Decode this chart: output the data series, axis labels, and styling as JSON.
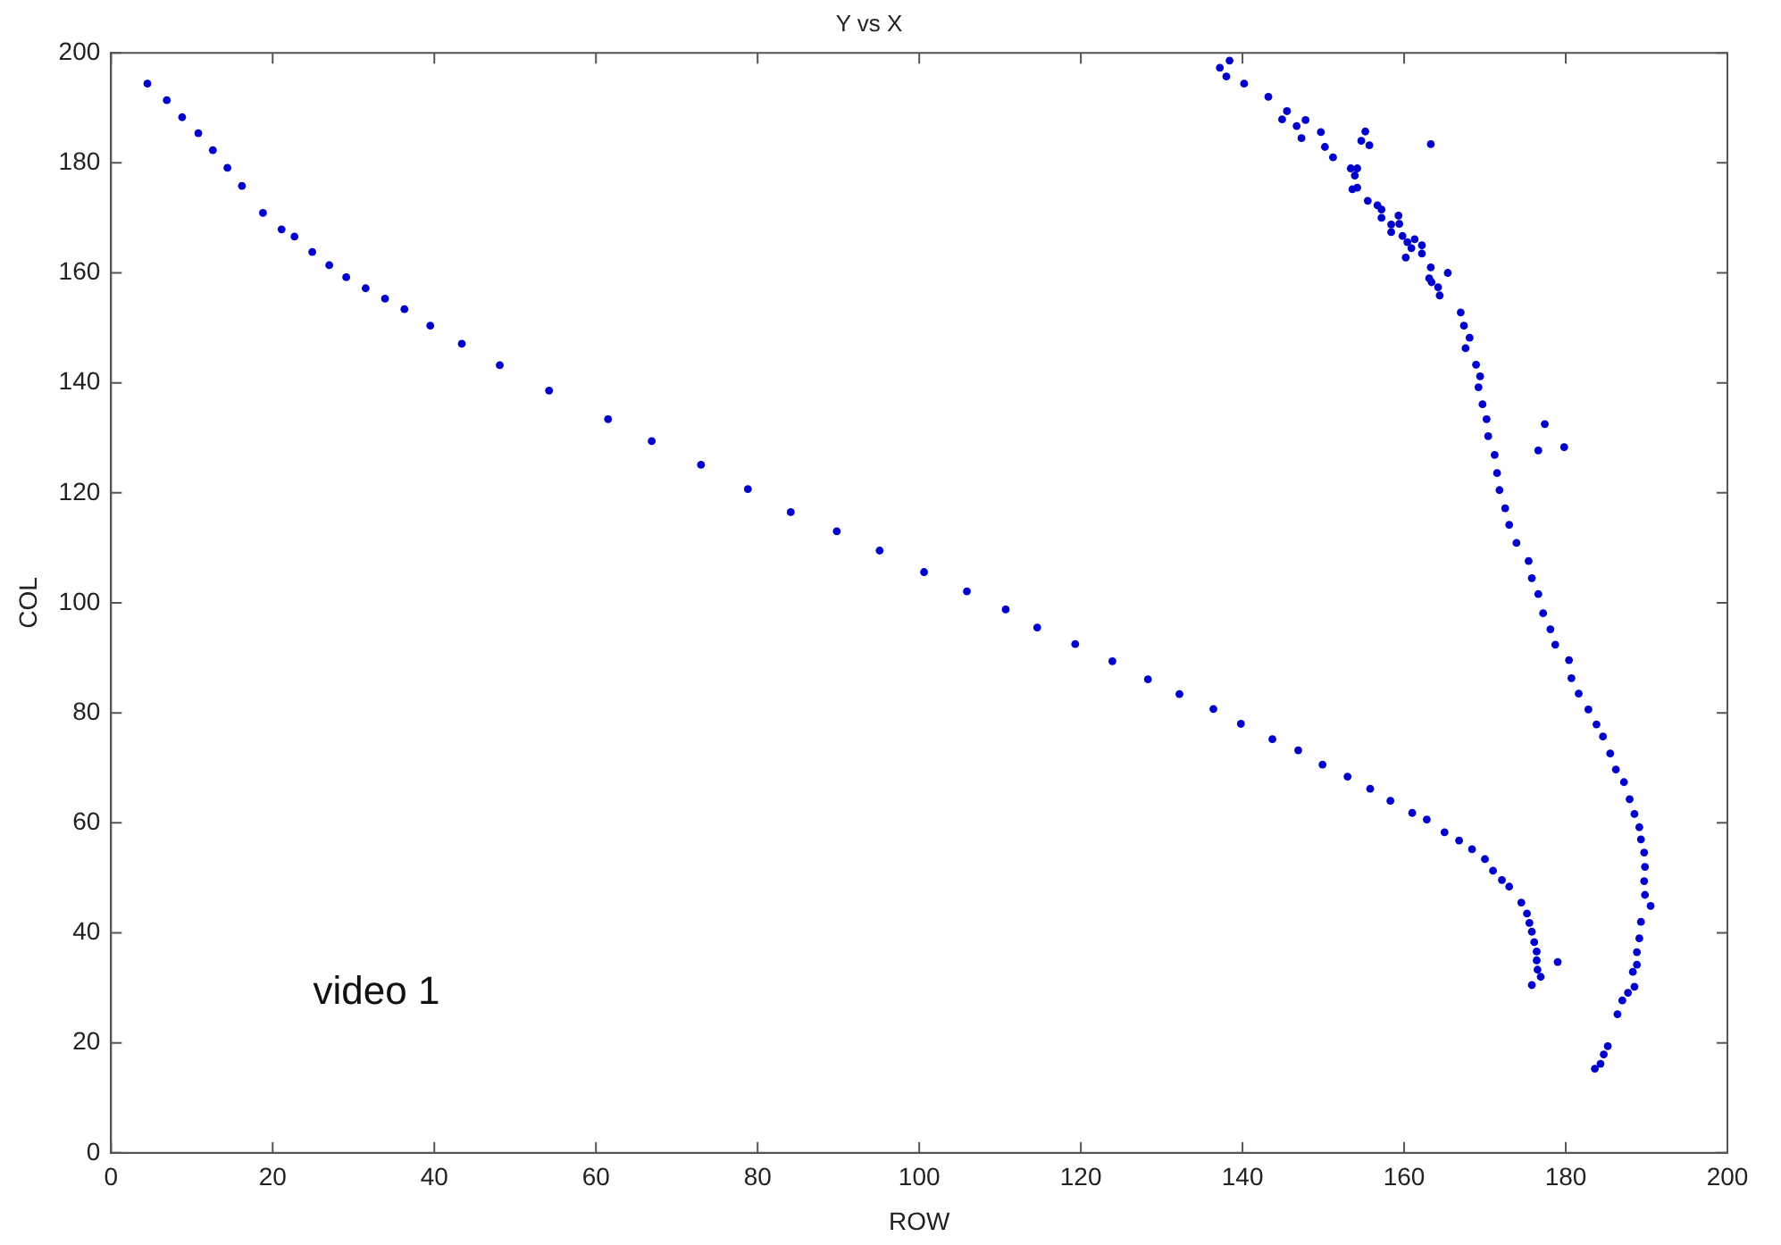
{
  "chart_data": {
    "type": "scatter",
    "title": "Y vs X",
    "xlabel": "ROW",
    "ylabel": "COL",
    "annotations": [
      "video 1"
    ],
    "xlim": [
      0,
      200
    ],
    "xticks": [
      0,
      20,
      40,
      60,
      80,
      100,
      120,
      140,
      160,
      180,
      200
    ],
    "ylim": [
      0,
      200
    ],
    "yticks": [
      0,
      20,
      40,
      60,
      80,
      100,
      120,
      140,
      160,
      180,
      200
    ],
    "grid": false,
    "legend": false,
    "marker": "circle",
    "series": [
      {
        "color": "#0000cc",
        "x": [
          4.5,
          6.9,
          8.8,
          10.8,
          12.6,
          14.4,
          16.2,
          18.8,
          21.1,
          22.7,
          24.9,
          27.0,
          29.1,
          31.5,
          33.9,
          36.3,
          39.5,
          43.4,
          48.1,
          54.2,
          61.5,
          66.9,
          73.0,
          78.8,
          84.1,
          89.8,
          95.1,
          100.6,
          105.9,
          110.7,
          114.6,
          119.3,
          123.9,
          128.3,
          132.2,
          136.4,
          139.8,
          143.7,
          146.9,
          149.9,
          153.0,
          155.8,
          158.3,
          161.0,
          162.8,
          165.0,
          166.8,
          168.4,
          170.0,
          171.0,
          172.1,
          173.0,
          174.5,
          175.2,
          175.5,
          175.8,
          176.1,
          176.4,
          176.4,
          176.5,
          176.9,
          175.8,
          179.0,
          137.2,
          138.4,
          138.0,
          140.2,
          143.2,
          145.5,
          144.9,
          146.7,
          147.8,
          147.3,
          149.7,
          150.2,
          151.2,
          155.2,
          154.7,
          155.7,
          163.3,
          153.4,
          154.2,
          153.9,
          153.6,
          154.2,
          155.5,
          156.7,
          157.2,
          157.2,
          159.3,
          158.4,
          159.4,
          158.4,
          159.8,
          160.4,
          161.3,
          160.9,
          162.2,
          162.2,
          160.2,
          163.3,
          165.4,
          163.1,
          163.4,
          164.2,
          164.4,
          167.0,
          167.4,
          168.1,
          167.6,
          168.9,
          169.4,
          169.2,
          169.7,
          170.2,
          170.4,
          177.4,
          176.6,
          179.8,
          171.2,
          171.5,
          171.8,
          172.5,
          173.0,
          173.9,
          175.4,
          175.8,
          176.6,
          177.2,
          178.1,
          178.7,
          180.4,
          180.7,
          181.6,
          182.8,
          183.8,
          184.6,
          185.5,
          186.2,
          187.2,
          187.9,
          188.5,
          189.1,
          189.3,
          189.7,
          189.8,
          189.7,
          189.8,
          190.5,
          189.3,
          189.1,
          188.8,
          188.8,
          188.3,
          188.5,
          187.7,
          187.0,
          186.4,
          185.2,
          184.7,
          184.3,
          183.6
        ],
        "values": [
          194.4,
          191.4,
          188.3,
          185.4,
          182.3,
          179.1,
          175.8,
          170.9,
          167.9,
          166.6,
          163.8,
          161.4,
          159.2,
          157.2,
          155.3,
          153.4,
          150.4,
          147.1,
          143.2,
          138.6,
          133.4,
          129.4,
          125.1,
          120.7,
          116.5,
          113.0,
          109.5,
          105.6,
          102.1,
          98.8,
          95.5,
          92.5,
          89.4,
          86.1,
          83.4,
          80.7,
          78.0,
          75.2,
          73.2,
          70.6,
          68.4,
          66.2,
          64.0,
          61.8,
          60.6,
          58.3,
          56.8,
          55.2,
          53.4,
          51.3,
          49.6,
          48.4,
          45.5,
          43.5,
          41.8,
          40.2,
          38.3,
          36.6,
          35.0,
          33.3,
          32.0,
          30.5,
          34.7,
          197.3,
          198.6,
          195.7,
          194.4,
          192.0,
          189.4,
          187.9,
          186.7,
          187.8,
          184.5,
          185.6,
          182.9,
          181.0,
          185.7,
          184.0,
          183.2,
          183.4,
          179.0,
          179.0,
          177.7,
          175.2,
          175.5,
          173.1,
          172.3,
          171.5,
          170.0,
          170.4,
          168.8,
          168.9,
          167.4,
          166.7,
          165.6,
          166.1,
          164.5,
          165.0,
          163.5,
          162.8,
          161.0,
          160.0,
          159.0,
          158.3,
          157.4,
          155.9,
          152.8,
          150.4,
          148.2,
          146.3,
          143.3,
          141.2,
          139.2,
          136.1,
          133.4,
          130.3,
          132.5,
          127.7,
          128.3,
          126.9,
          123.6,
          120.5,
          117.2,
          114.2,
          110.9,
          107.6,
          104.5,
          101.6,
          98.1,
          95.2,
          92.4,
          89.6,
          86.3,
          83.5,
          80.6,
          77.9,
          75.7,
          72.6,
          69.7,
          67.4,
          64.3,
          61.6,
          59.2,
          57.0,
          54.6,
          52.0,
          49.4,
          46.9,
          44.9,
          42.0,
          39.0,
          36.5,
          34.2,
          32.9,
          30.2,
          29.1,
          27.7,
          25.2,
          19.4,
          17.9,
          16.2,
          15.3
        ]
      }
    ]
  }
}
